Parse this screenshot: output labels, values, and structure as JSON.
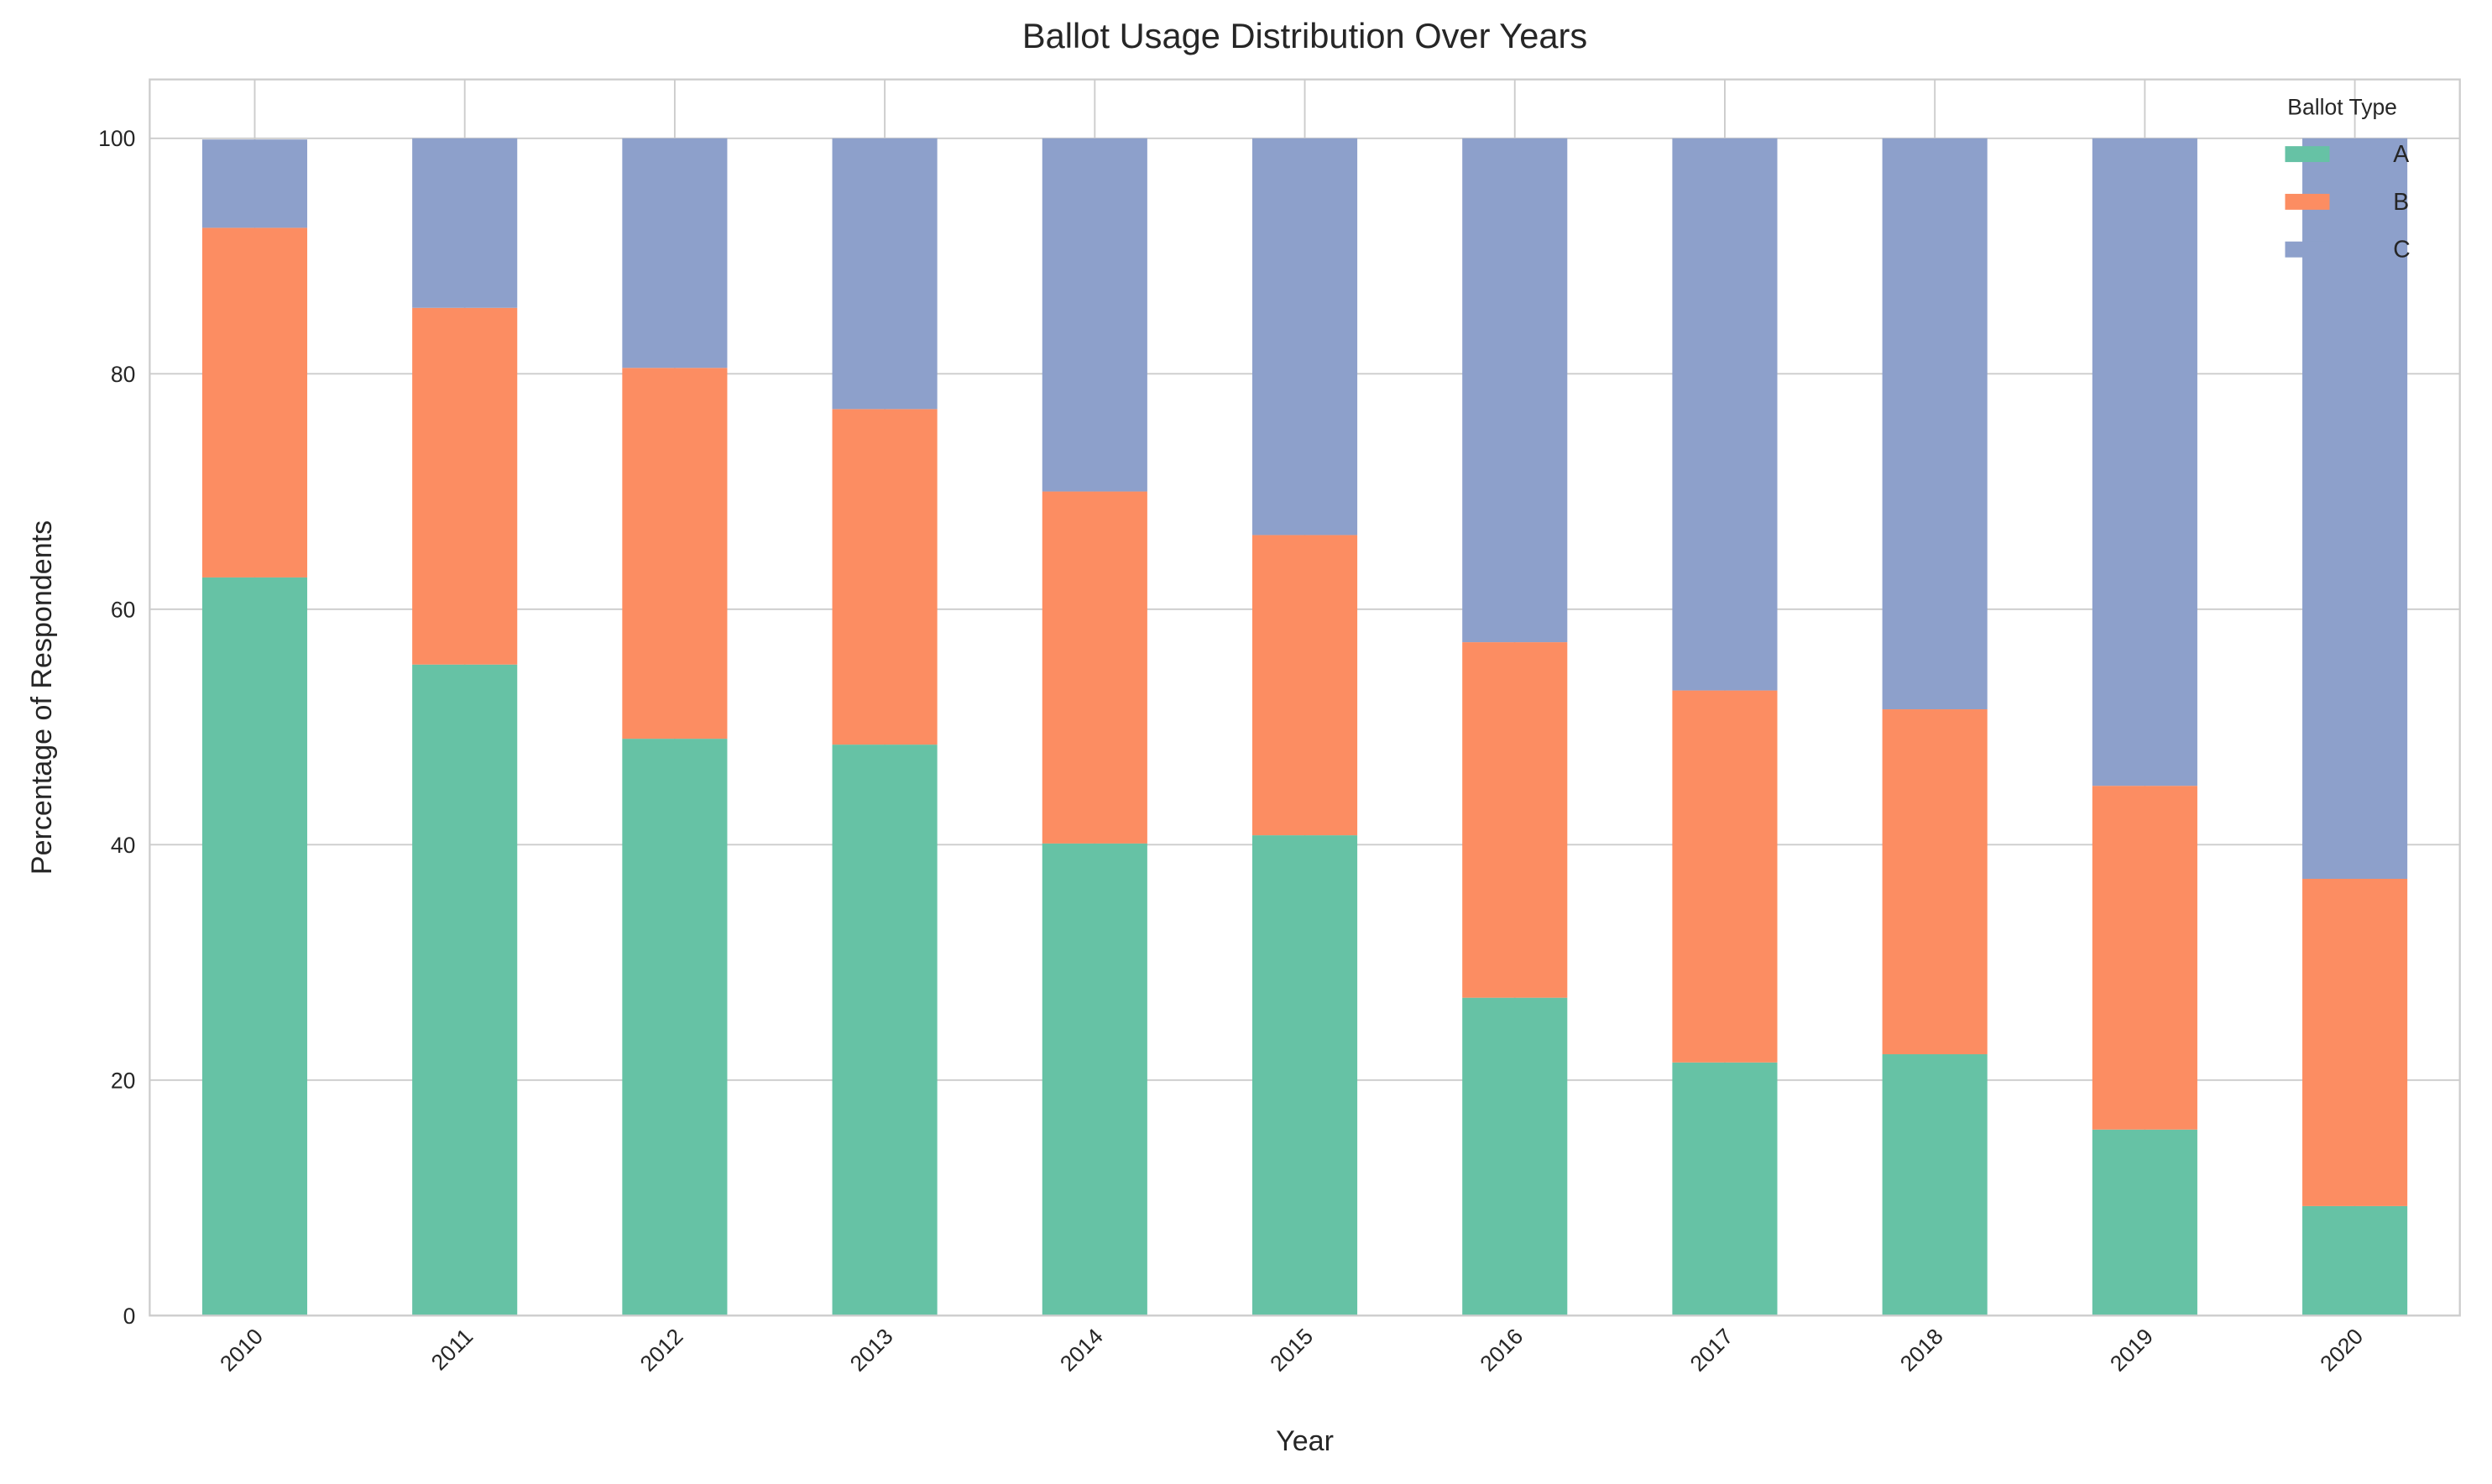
{
  "chart_data": {
    "type": "stacked-bar",
    "title": "Ballot Usage Distribution Over Years",
    "x_label": "Year",
    "y_label": "Percentage of Respondents",
    "categories": [
      "2010",
      "2011",
      "2012",
      "2013",
      "2014",
      "2015",
      "2016",
      "2017",
      "2018",
      "2019",
      "2020"
    ],
    "series": [
      {
        "name": "A",
        "color": "#66c2a5",
        "values": [
          62.7,
          55.3,
          49,
          48.5,
          40.1,
          40.8,
          27,
          21.5,
          22.2,
          15.8,
          9.3
        ]
      },
      {
        "name": "B",
        "color": "#fc8d62",
        "values": [
          29.7,
          30.3,
          31.5,
          28.5,
          29.9,
          25.5,
          30.2,
          31.6,
          29.3,
          29.2,
          27.8
        ]
      },
      {
        "name": "C",
        "color": "#8da0cb",
        "values": [
          7.5,
          14.4,
          19.5,
          23,
          30,
          33.7,
          42.8,
          46.9,
          48.5,
          55,
          62.9
        ]
      }
    ],
    "legend_title": "Ballot Type",
    "legend_position": "upper right",
    "ylim": [
      0,
      105
    ],
    "yticks": [
      0,
      20,
      40,
      60,
      80,
      100
    ],
    "grid": true
  }
}
